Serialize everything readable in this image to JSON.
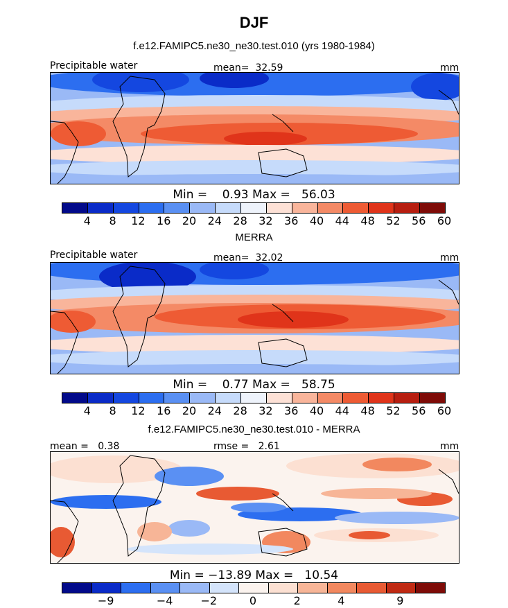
{
  "title": "DJF",
  "colors": {
    "abs_palette": [
      "#020a8a",
      "#0a2bc8",
      "#1447e0",
      "#2c6ef0",
      "#5a90f3",
      "#9ab9f6",
      "#c6dbfb",
      "#eef3fb",
      "#fde1d6",
      "#f9b59b",
      "#f48a66",
      "#ee5b34",
      "#e0341a",
      "#b71e10",
      "#7e0b07"
    ],
    "diff_palette": [
      "#020a8a",
      "#0a2bc8",
      "#2c6ef0",
      "#5a90f3",
      "#9ab9f6",
      "#d4e4fb",
      "#fbf3ee",
      "#fce0d2",
      "#f7b597",
      "#f2885f",
      "#e85a33",
      "#c02a13",
      "#7e0b07"
    ]
  },
  "panels": [
    {
      "subtitle": "f.e12.FAMIPC5.ne30_ne30.test.010 (yrs 1980-1984)",
      "left_label": "Precipitable water",
      "center_label": "mean=  32.59",
      "right_label": "mm",
      "min_max": "Min =    0.93 Max =   56.03",
      "colorbar_ticks": [
        "4",
        "8",
        "12",
        "16",
        "20",
        "24",
        "28",
        "32",
        "36",
        "40",
        "44",
        "48",
        "52",
        "56",
        "60"
      ]
    },
    {
      "subtitle": "MERRA",
      "left_label": "Precipitable water",
      "center_label": "mean=  32.02",
      "right_label": "mm",
      "min_max": "Min =    0.77 Max =   58.75",
      "colorbar_ticks": [
        "4",
        "8",
        "12",
        "16",
        "20",
        "24",
        "28",
        "32",
        "36",
        "40",
        "44",
        "48",
        "52",
        "56",
        "60"
      ]
    },
    {
      "subtitle": "f.e12.FAMIPC5.ne30_ne30.test.010 - MERRA",
      "left_label": "mean =   0.38",
      "center_label": "rmse =   2.61",
      "right_label": "mm",
      "min_max": "Min = −13.89 Max =   10.54",
      "colorbar_ticks": [
        "−9",
        "−4",
        "−2",
        "0",
        "2",
        "4",
        "9"
      ]
    }
  ]
}
